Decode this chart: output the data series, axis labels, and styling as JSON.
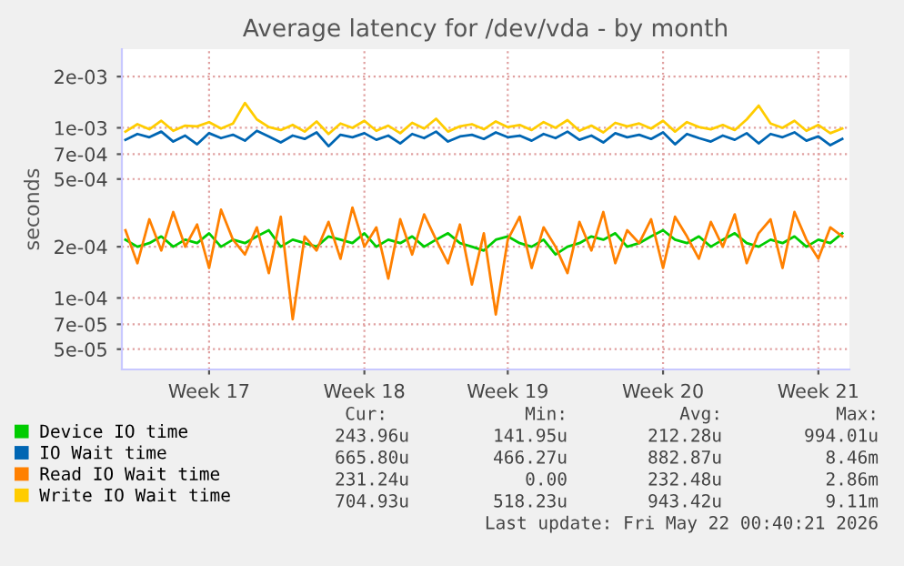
{
  "chart_data": {
    "type": "line",
    "title": "Average latency for /dev/vda - by month",
    "ylabel": "seconds",
    "log": "y",
    "grid": true,
    "legend": "bottom",
    "marker": "none",
    "line_style": "solid",
    "categories": [
      null,
      null,
      null,
      null,
      null,
      null,
      null,
      "Week 17",
      null,
      null,
      null,
      null,
      null,
      null,
      null,
      null,
      null,
      null,
      null,
      null,
      "Week 18",
      null,
      null,
      null,
      null,
      null,
      null,
      null,
      null,
      null,
      null,
      null,
      "Week 19",
      null,
      null,
      null,
      null,
      null,
      null,
      null,
      null,
      null,
      null,
      null,
      null,
      "Week 20",
      null,
      null,
      null,
      null,
      null,
      null,
      null,
      null,
      null,
      null,
      null,
      null,
      "Week 21",
      null,
      null
    ],
    "ylim": [
      3.8e-05,
      0.0029
    ],
    "yticks": [
      {
        "value": 5e-05,
        "label": "5e-05"
      },
      {
        "value": 7e-05,
        "label": "7e-05"
      },
      {
        "value": 0.0001,
        "label": "1e-04"
      },
      {
        "value": 0.0002,
        "label": "2e-04"
      },
      {
        "value": 0.0005,
        "label": "5e-04"
      },
      {
        "value": 0.0007,
        "label": "7e-04"
      },
      {
        "value": 0.001,
        "label": "1e-03"
      },
      {
        "value": 0.002,
        "label": "2e-03"
      }
    ],
    "series": [
      {
        "name": "Device IO time",
        "color": "#00cc00",
        "values": [
          0.00022,
          0.0002,
          0.00021,
          0.00023,
          0.0002,
          0.00022,
          0.00021,
          0.00024,
          0.0002,
          0.00022,
          0.00021,
          0.00023,
          0.00025,
          0.0002,
          0.00022,
          0.00021,
          0.0002,
          0.00023,
          0.00022,
          0.00021,
          0.00024,
          0.0002,
          0.00022,
          0.00021,
          0.00023,
          0.0002,
          0.00022,
          0.00024,
          0.00021,
          0.0002,
          0.00019,
          0.00022,
          0.00023,
          0.00021,
          0.0002,
          0.00022,
          0.00018,
          0.0002,
          0.00021,
          0.00023,
          0.00022,
          0.00024,
          0.0002,
          0.00021,
          0.00023,
          0.00025,
          0.00022,
          0.00021,
          0.00023,
          0.0002,
          0.00022,
          0.00024,
          0.00021,
          0.0002,
          0.00022,
          0.00021,
          0.00023,
          0.0002,
          0.00022,
          0.00021,
          0.00024
        ]
      },
      {
        "name": "IO Wait time",
        "color": "#0066b3",
        "values": [
          0.00085,
          0.00092,
          0.00088,
          0.00095,
          0.00083,
          0.0009,
          0.0008,
          0.00093,
          0.00087,
          0.00091,
          0.00084,
          0.00096,
          0.00089,
          0.00082,
          0.0009,
          0.00086,
          0.00094,
          0.00078,
          0.00091,
          0.00088,
          0.00093,
          0.00085,
          0.0009,
          0.00081,
          0.00092,
          0.00087,
          0.00095,
          0.00083,
          0.00089,
          0.00091,
          0.00086,
          0.00094,
          0.00088,
          0.0009,
          0.00084,
          0.00092,
          0.00087,
          0.00095,
          0.00085,
          0.0009,
          0.00082,
          0.00093,
          0.00088,
          0.00091,
          0.00086,
          0.00094,
          0.0008,
          0.00092,
          0.00087,
          0.00083,
          0.0009,
          0.00085,
          0.00093,
          0.00081,
          0.00092,
          0.00088,
          0.00094,
          0.00084,
          0.00089,
          0.00079,
          0.00086
        ]
      },
      {
        "name": "Read IO Wait time",
        "color": "#ff8000",
        "values": [
          0.00025,
          0.00016,
          0.00029,
          0.00019,
          0.00032,
          0.0002,
          0.00027,
          0.00015,
          0.00033,
          0.00022,
          0.00018,
          0.00026,
          0.00014,
          0.0003,
          7.5e-05,
          0.00023,
          0.00019,
          0.00028,
          0.00017,
          0.00034,
          0.0002,
          0.00026,
          0.00013,
          0.00029,
          0.00018,
          0.00031,
          0.00022,
          0.00016,
          0.00027,
          0.00012,
          0.00024,
          8e-05,
          0.00022,
          0.0003,
          0.00015,
          0.00026,
          0.0002,
          0.00014,
          0.00028,
          0.00019,
          0.00032,
          0.00016,
          0.00025,
          0.00021,
          0.00029,
          0.00015,
          0.0003,
          0.00023,
          0.00017,
          0.00028,
          0.0002,
          0.00031,
          0.00016,
          0.00024,
          0.00029,
          0.00015,
          0.00032,
          0.00022,
          0.00017,
          0.00026,
          0.00023
        ]
      },
      {
        "name": "Write IO Wait time",
        "color": "#ffcc00",
        "values": [
          0.00095,
          0.00105,
          0.00098,
          0.0011,
          0.00096,
          0.00103,
          0.00102,
          0.00108,
          0.00099,
          0.00106,
          0.0014,
          0.00112,
          0.00101,
          0.00097,
          0.00104,
          0.00095,
          0.00109,
          0.00092,
          0.00106,
          0.001,
          0.0011,
          0.00096,
          0.00103,
          0.00093,
          0.00107,
          0.00099,
          0.00113,
          0.00095,
          0.00102,
          0.00105,
          0.00098,
          0.00109,
          0.00101,
          0.00104,
          0.00097,
          0.00108,
          0.001,
          0.00111,
          0.00096,
          0.00103,
          0.00094,
          0.00107,
          0.00102,
          0.00106,
          0.00099,
          0.0011,
          0.00095,
          0.00108,
          0.00101,
          0.00098,
          0.00104,
          0.00097,
          0.00112,
          0.00135,
          0.00106,
          0.001,
          0.0011,
          0.00096,
          0.00104,
          0.00093,
          0.00099
        ]
      }
    ],
    "annotations": [
      "Cur:",
      "Min:",
      "Avg:",
      "Max:",
      "243.96u",
      "141.95u",
      "212.28u",
      "994.01u",
      "665.80u",
      "466.27u",
      "882.87u",
      "8.46m",
      "231.24u",
      "0.00",
      "232.48u",
      "2.86m",
      "704.93u",
      "518.23u",
      "943.42u",
      "9.11m",
      "Last update: Fri May 22 00:40:21 2026"
    ]
  }
}
